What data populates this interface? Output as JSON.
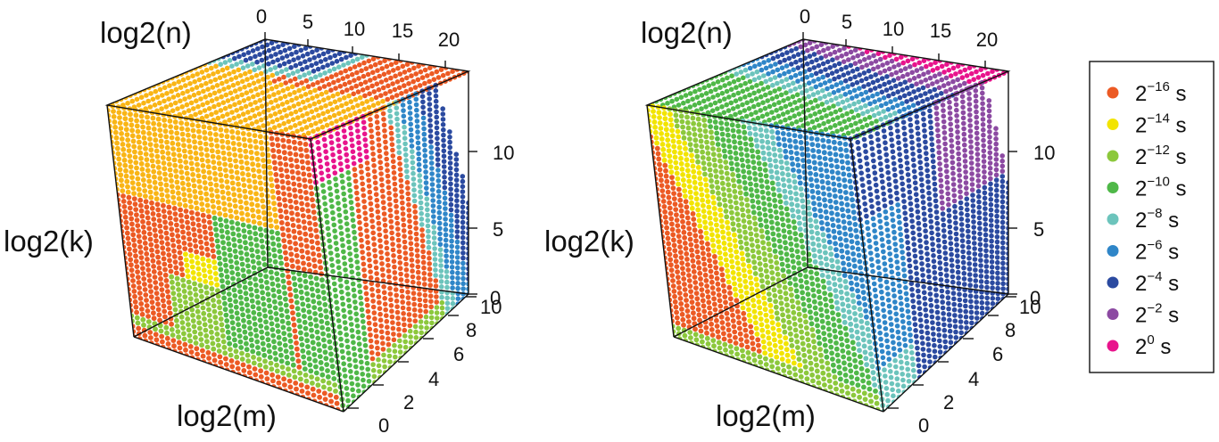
{
  "colors": {
    "2^-16": "#ec5a24",
    "2^-14": "#f2e400",
    "2^-12": "#8cc83c",
    "2^-10": "#4fb848",
    "2^-8": "#6cc4bc",
    "2^-6": "#2f86c8",
    "2^-4": "#2b4aa0",
    "2^-2": "#8c4aa2",
    "2^0": "#e8148c",
    "orange": "#f9b516"
  },
  "legend": {
    "items": [
      {
        "base": "2",
        "exp": "−16",
        "unit": " s",
        "color_key": "2^-16"
      },
      {
        "base": "2",
        "exp": "−14",
        "unit": " s",
        "color_key": "2^-14"
      },
      {
        "base": "2",
        "exp": "−12",
        "unit": " s",
        "color_key": "2^-12"
      },
      {
        "base": "2",
        "exp": "−10",
        "unit": " s",
        "color_key": "2^-10"
      },
      {
        "base": "2",
        "exp": "−8",
        "unit": " s",
        "color_key": "2^-8"
      },
      {
        "base": "2",
        "exp": "−6",
        "unit": " s",
        "color_key": "2^-6"
      },
      {
        "base": "2",
        "exp": "−4",
        "unit": " s",
        "color_key": "2^-4"
      },
      {
        "base": "2",
        "exp": "−2",
        "unit": " s",
        "color_key": "2^-2"
      },
      {
        "base": "2",
        "exp": "0",
        "unit": " s",
        "color_key": "2^0"
      }
    ]
  },
  "chart_data": [
    {
      "type": "scatter",
      "dimensions": "3d",
      "axes": {
        "n": {
          "label": "log2(n)",
          "ticks": [
            "0",
            "5",
            "10",
            "15",
            "20"
          ],
          "range": [
            0,
            22
          ]
        },
        "k": {
          "label": "log2(k)",
          "ticks": [
            "0",
            "5",
            "10"
          ],
          "range": [
            0,
            14
          ]
        },
        "m": {
          "label": "log2(m)",
          "ticks": [
            "0",
            "2",
            "4",
            "6",
            "8",
            "10"
          ],
          "range": [
            0,
            10
          ]
        }
      },
      "grid": false,
      "legend_position": "right"
    },
    {
      "type": "scatter",
      "dimensions": "3d",
      "axes": {
        "n": {
          "label": "log2(n)",
          "ticks": [
            "0",
            "5",
            "10",
            "15",
            "20"
          ],
          "range": [
            0,
            22
          ]
        },
        "k": {
          "label": "log2(k)",
          "ticks": [
            "0",
            "5",
            "10"
          ],
          "range": [
            0,
            14
          ]
        },
        "m": {
          "label": "log2(m)",
          "ticks": [
            "0",
            "2",
            "4",
            "6",
            "8",
            "10"
          ],
          "range": [
            0,
            10
          ]
        }
      },
      "grid": false,
      "legend_position": "right"
    }
  ]
}
